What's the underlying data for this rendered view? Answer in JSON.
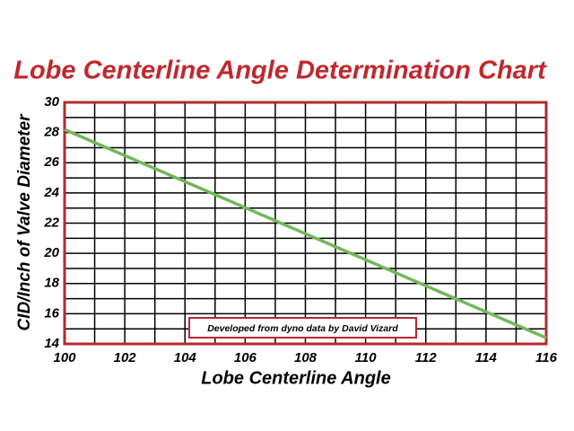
{
  "chart_data": {
    "type": "line",
    "title": "Lobe Centerline Angle Determination Chart",
    "x_label": "Lobe Centerline Angle",
    "y_label": "CID/Inch of Valve Diameter",
    "annotation": "Developed from dyno data by David Vizard",
    "x": [
      100,
      116
    ],
    "series": [
      {
        "color": "#72b85a",
        "values": [
          28.2,
          14.4
        ]
      }
    ],
    "xlim": [
      100,
      116
    ],
    "ylim": [
      14,
      30
    ],
    "xticks": [
      100,
      102,
      104,
      106,
      108,
      110,
      112,
      114,
      116
    ],
    "yticks": [
      14,
      16,
      18,
      20,
      22,
      24,
      26,
      28,
      30
    ],
    "xminor": [
      101,
      103,
      105,
      107,
      109,
      111,
      113,
      115
    ],
    "yminor": [
      15,
      17,
      19,
      21,
      23,
      25,
      27,
      29
    ],
    "grid": true,
    "frame_color": "#b5282e",
    "title_color": "#c0282e"
  }
}
